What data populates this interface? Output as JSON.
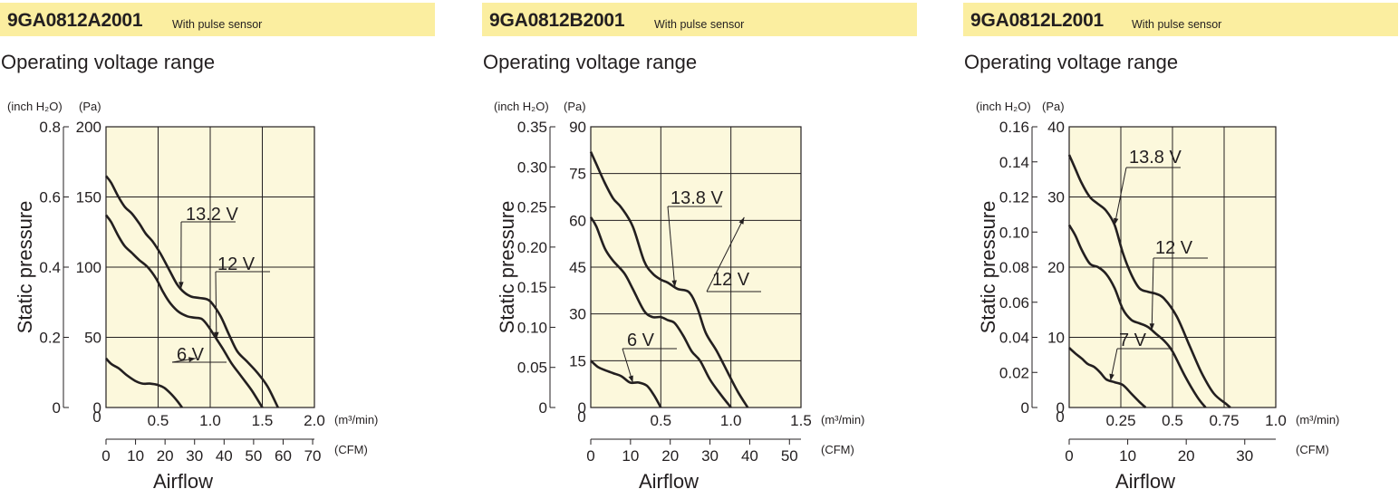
{
  "chart_data": [
    {
      "type": "line",
      "title": "9GA0812A2001",
      "title_note": "With pulse sensor",
      "subtitle": "Operating voltage range",
      "ylabel": "Static pressure",
      "xlabel": "Airflow",
      "y_left_unit": "(inch H₂O)",
      "y_right_unit": "(Pa)",
      "x_unit": "(m³/min)",
      "x2_unit": "(CFM)",
      "xlim": [
        0,
        2.0
      ],
      "ylim": [
        0,
        200
      ],
      "x_ticks": [
        "0",
        "0.5",
        "1.0",
        "1.5",
        "2.0"
      ],
      "y_ticks": [
        "0",
        "50",
        "100",
        "150",
        "200"
      ],
      "y_inch_ticks": [
        "0",
        "0.2",
        "0.4",
        "0.6",
        "0.8"
      ],
      "cfm_ticks": [
        "0",
        "10",
        "20",
        "30",
        "40",
        "50",
        "60",
        "70"
      ],
      "cfm_max": 70.6,
      "grid": true,
      "background": "#fcf8dc",
      "series": [
        {
          "name": "13.2 V",
          "x": [
            0,
            0.05,
            0.12,
            0.18,
            0.25,
            0.32,
            0.38,
            0.45,
            0.52,
            0.6,
            0.68,
            0.75,
            0.82,
            0.9,
            0.97,
            1.02,
            1.1,
            1.18,
            1.26,
            1.35,
            1.45,
            1.55,
            1.65
          ],
          "y": [
            165,
            160,
            150,
            143,
            138,
            131,
            124,
            118,
            110,
            99,
            88,
            82,
            79,
            78,
            77,
            74,
            65,
            52,
            40,
            33,
            25,
            15,
            0
          ]
        },
        {
          "name": "12 V",
          "x": [
            0,
            0.05,
            0.12,
            0.18,
            0.25,
            0.32,
            0.4,
            0.48,
            0.55,
            0.62,
            0.7,
            0.78,
            0.85,
            0.92,
            0.98,
            1.05,
            1.12,
            1.2,
            1.3,
            1.4,
            1.5
          ],
          "y": [
            137,
            132,
            122,
            115,
            110,
            105,
            100,
            92,
            82,
            74,
            68,
            65,
            64,
            63,
            58,
            50,
            42,
            32,
            22,
            12,
            0
          ]
        },
        {
          "name": "6 V",
          "x": [
            0,
            0.05,
            0.12,
            0.2,
            0.28,
            0.35,
            0.42,
            0.5,
            0.56,
            0.62,
            0.68,
            0.73
          ],
          "y": [
            35,
            31,
            28,
            23,
            19,
            17,
            17,
            16,
            14,
            10,
            5,
            0
          ]
        }
      ]
    },
    {
      "type": "line",
      "title": "9GA0812B2001",
      "title_note": "With pulse sensor",
      "subtitle": "Operating voltage range",
      "ylabel": "Static pressure",
      "xlabel": "Airflow",
      "y_left_unit": "(inch H₂O)",
      "y_right_unit": "(Pa)",
      "x_unit": "(m³/min)",
      "x2_unit": "(CFM)",
      "xlim": [
        0,
        1.5
      ],
      "ylim": [
        0,
        90
      ],
      "x_ticks": [
        "0",
        "0.5",
        "1.0",
        "1.5"
      ],
      "y_ticks": [
        "0",
        "15",
        "30",
        "45",
        "60",
        "75",
        "90"
      ],
      "y_inch_ticks": [
        "0",
        "0.05",
        "0.10",
        "0.15",
        "0.20",
        "0.25",
        "0.30",
        "0.35"
      ],
      "cfm_ticks": [
        "0",
        "10",
        "20",
        "30",
        "40",
        "50"
      ],
      "cfm_max": 52.9,
      "grid": true,
      "background": "#fcf8dc",
      "series": [
        {
          "name": "13.8 V",
          "x": [
            0,
            0.04,
            0.1,
            0.16,
            0.22,
            0.3,
            0.38,
            0.44,
            0.5,
            0.55,
            0.62,
            0.7,
            0.76,
            0.82,
            0.9,
            0.98,
            1.05,
            1.12
          ],
          "y": [
            82,
            78,
            72,
            67,
            64,
            58,
            47,
            43,
            41,
            40,
            38,
            37,
            32,
            24,
            18,
            11,
            5,
            0
          ]
        },
        {
          "name": "12 V",
          "x": [
            0,
            0.04,
            0.1,
            0.16,
            0.24,
            0.3,
            0.38,
            0.44,
            0.5,
            0.55,
            0.6,
            0.66,
            0.72,
            0.78,
            0.85,
            0.93,
            1.0
          ],
          "y": [
            61,
            58,
            51,
            47,
            43,
            38,
            31,
            29,
            29,
            28,
            27,
            23,
            18,
            15,
            9,
            4,
            0
          ]
        },
        {
          "name": "6 V",
          "x": [
            0,
            0.05,
            0.1,
            0.16,
            0.22,
            0.28,
            0.34,
            0.4,
            0.45,
            0.5
          ],
          "y": [
            15,
            13,
            12,
            11,
            10,
            8,
            8,
            7,
            4,
            0
          ]
        }
      ]
    },
    {
      "type": "line",
      "title": "9GA0812L2001",
      "title_note": "With pulse sensor",
      "subtitle": "Operating voltage range",
      "ylabel": "Static pressure",
      "xlabel": "Airflow",
      "y_left_unit": "(inch H₂O)",
      "y_right_unit": "(Pa)",
      "x_unit": "(m³/min)",
      "x2_unit": "(CFM)",
      "xlim": [
        0,
        1.0
      ],
      "ylim": [
        0,
        40
      ],
      "x_ticks": [
        "0",
        "0.25",
        "0.5",
        "0.75",
        "1.0"
      ],
      "y_ticks": [
        "0",
        "10",
        "20",
        "30",
        "40"
      ],
      "y_inch_ticks": [
        "0",
        "0.02",
        "0.04",
        "0.06",
        "0.08",
        "0.10",
        "0.12",
        "0.14",
        "0.16"
      ],
      "cfm_ticks": [
        "0",
        "10",
        "20",
        "30"
      ],
      "cfm_max": 35.3,
      "grid": true,
      "background": "#fcf8dc",
      "series": [
        {
          "name": "13.8 V",
          "x": [
            0,
            0.03,
            0.06,
            0.1,
            0.14,
            0.18,
            0.22,
            0.26,
            0.3,
            0.34,
            0.38,
            0.42,
            0.46,
            0.52,
            0.58,
            0.64,
            0.7,
            0.76,
            0.78
          ],
          "y": [
            36,
            34,
            32,
            30,
            29,
            28,
            26,
            22,
            19,
            17,
            16.5,
            16.2,
            15.5,
            13,
            9,
            5,
            2,
            0.5,
            0
          ]
        },
        {
          "name": "12 V",
          "x": [
            0,
            0.03,
            0.06,
            0.1,
            0.14,
            0.18,
            0.22,
            0.26,
            0.3,
            0.34,
            0.38,
            0.42,
            0.46,
            0.5,
            0.56,
            0.62,
            0.66
          ],
          "y": [
            26,
            24.5,
            22.5,
            20.5,
            20,
            19,
            17,
            14,
            12.5,
            12,
            11.5,
            10.5,
            9.5,
            8,
            4.5,
            1.5,
            0
          ]
        },
        {
          "name": "7 V",
          "x": [
            0,
            0.03,
            0.06,
            0.09,
            0.12,
            0.15,
            0.18,
            0.22,
            0.26,
            0.3,
            0.34,
            0.37
          ],
          "y": [
            8.5,
            7.7,
            7.0,
            6.2,
            5.8,
            5.0,
            4.0,
            3.6,
            3.2,
            2.0,
            0.8,
            0
          ]
        }
      ]
    }
  ]
}
